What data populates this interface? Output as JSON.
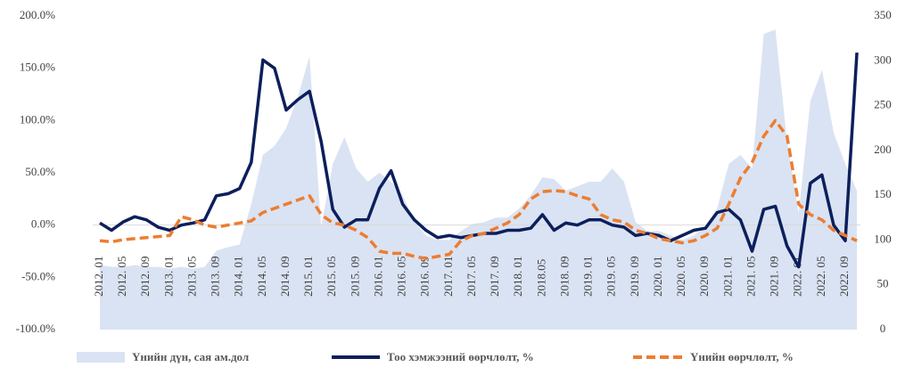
{
  "chart_data": {
    "type": "combo",
    "categories": [
      "2012. 01",
      null,
      "2012. 05",
      null,
      "2012. 09",
      null,
      "2013. 01",
      null,
      "2013. 05",
      null,
      "2013. 09",
      null,
      "2014. 01",
      null,
      "2014. 05",
      null,
      "2014. 09",
      null,
      "2015. 01",
      null,
      "2015. 05",
      null,
      "2015. 09",
      null,
      "2016. 01",
      null,
      "2016. 05",
      null,
      "2016. 09",
      null,
      "2017. 01",
      null,
      "2017. 05",
      null,
      "2017. 09",
      null,
      "2018. 01",
      null,
      "2018.05",
      null,
      "2018. 09",
      null,
      "2019. 01",
      null,
      "2019. 05",
      null,
      "2019. 09",
      null,
      "2020. 01",
      null,
      "2020. 05",
      null,
      "2020. 09",
      null,
      "2021. 01",
      null,
      "2021. 05",
      null,
      "2021. 09",
      null,
      "2022. 01",
      null,
      "2022. 05",
      null,
      "2022. 09",
      null
    ],
    "series": [
      {
        "name": "Үнийн дүн, сая ам.дол",
        "kind": "area",
        "axis": "y2",
        "color": "#dae3f3",
        "values": [
          72,
          70,
          70,
          72,
          70,
          70,
          68,
          70,
          68,
          70,
          88,
          92,
          95,
          140,
          195,
          205,
          225,
          260,
          305,
          115,
          185,
          215,
          180,
          165,
          175,
          165,
          150,
          120,
          105,
          100,
          100,
          110,
          118,
          120,
          125,
          125,
          135,
          150,
          170,
          168,
          155,
          160,
          165,
          165,
          180,
          165,
          120,
          110,
          110,
          105,
          100,
          105,
          115,
          135,
          185,
          195,
          180,
          330,
          335,
          210,
          130,
          255,
          290,
          220,
          185,
          155
        ]
      },
      {
        "name": "Тоо хэмжээний өөрчлөлт, %",
        "kind": "line",
        "color": "#0c1f5c",
        "dashed": false,
        "values": [
          2,
          -5,
          3,
          8,
          5,
          -2,
          -5,
          0,
          2,
          5,
          28,
          30,
          35,
          60,
          158,
          150,
          110,
          120,
          128,
          80,
          15,
          -2,
          5,
          5,
          35,
          52,
          20,
          5,
          -5,
          -12,
          -10,
          -12,
          -10,
          -8,
          -8,
          -5,
          -5,
          -3,
          10,
          -5,
          2,
          0,
          5,
          5,
          0,
          -2,
          -10,
          -8,
          -10,
          -15,
          -10,
          -5,
          -3,
          12,
          15,
          5,
          -25,
          15,
          18,
          -20,
          -40,
          40,
          48,
          0,
          -15,
          165
        ]
      },
      {
        "name": "Үнийн өөрчлөлт, %",
        "kind": "line",
        "color": "#ed7d31",
        "dashed": true,
        "values": [
          -15,
          -16,
          -14,
          -13,
          -12,
          -11,
          -10,
          8,
          5,
          0,
          -2,
          0,
          2,
          4,
          12,
          16,
          20,
          24,
          28,
          10,
          2,
          0,
          -5,
          -12,
          -25,
          -27,
          -27,
          -30,
          -32,
          -30,
          -28,
          -15,
          -10,
          -8,
          -3,
          2,
          10,
          25,
          32,
          33,
          32,
          28,
          25,
          10,
          5,
          3,
          -5,
          -8,
          -13,
          -15,
          -17,
          -15,
          -10,
          -3,
          20,
          45,
          60,
          85,
          100,
          85,
          20,
          10,
          5,
          -5,
          -10,
          -15
        ]
      }
    ],
    "ylim": [
      -100,
      200
    ],
    "yticks": [
      {
        "value": -100,
        "label": "-100.0%"
      },
      {
        "value": -50,
        "label": "-50.0%"
      },
      {
        "value": 0,
        "label": "0.0%"
      },
      {
        "value": 50,
        "label": "50.0%"
      },
      {
        "value": 100,
        "label": "100.0%"
      },
      {
        "value": 150,
        "label": "150.0%"
      },
      {
        "value": 200,
        "label": "200.0%"
      }
    ],
    "y2lim": [
      0,
      350
    ],
    "y2ticks": [
      0,
      50,
      100,
      150,
      200,
      250,
      300,
      350
    ],
    "legend": "bottom"
  }
}
